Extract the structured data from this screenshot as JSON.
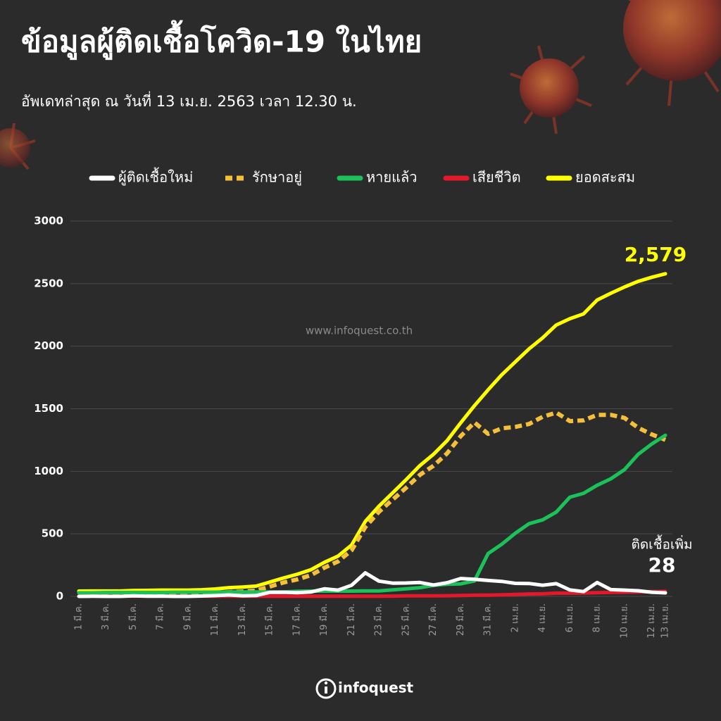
{
  "chart_data": {
    "type": "line",
    "title": "ข้อมูลผู้ติดเชื้อโควิด-19 ในไทย",
    "subtitle": "อัพเดทล่าสุด ณ วันที่  13 เม.ย. 2563 เวลา 12.30 น.",
    "watermark": "www.infoquest.co.th",
    "logo": "infoquest",
    "categories": [
      "1 มี.ค.",
      null,
      "3 มี.ค.",
      null,
      "5 มี.ค.",
      null,
      "7 มี.ค.",
      null,
      "9 มี.ค.",
      null,
      "11 มี.ค.",
      null,
      "13 มี.ค.",
      null,
      "15 มี.ค.",
      null,
      "17 มี.ค.",
      null,
      "19 มี.ค.",
      null,
      "21 มี.ค.",
      null,
      "23 มี.ค.",
      null,
      "25 มี.ค.",
      null,
      "27 มี.ค.",
      null,
      "29 มี.ค.",
      null,
      "31 มี.ค.",
      null,
      "2 เม.ย.",
      null,
      "4 เม.ย.",
      null,
      "6 เม.ย.",
      null,
      "8 เม.ย.",
      null,
      "10 เม.ย.",
      null,
      "12 เม.ย.",
      "13 เม.ย."
    ],
    "series": [
      {
        "name": "ผู้ติดเชื้อใหม่",
        "color": "#ffffff",
        "values": [
          0,
          1,
          0,
          0,
          4,
          1,
          2,
          0,
          0,
          3,
          6,
          11,
          5,
          7,
          32,
          33,
          30,
          35,
          60,
          50,
          89,
          188,
          122,
          106,
          107,
          111,
          91,
          109,
          143,
          136,
          127,
          120,
          104,
          103,
          89,
          102,
          51,
          38,
          111,
          54,
          50,
          45,
          33,
          28
        ]
      },
      {
        "name": "รักษาอยู่",
        "color": "#f5bf3c",
        "dashed": true,
        "values": [
          13,
          14,
          11,
          11,
          15,
          16,
          18,
          16,
          16,
          19,
          24,
          34,
          39,
          46,
          78,
          111,
          135,
          169,
          229,
          279,
          368,
          554,
          676,
          773,
          869,
          971,
          1044,
          1143,
          1281,
          1391,
          1299,
          1343,
          1355,
          1378,
          1435,
          1469,
          1401,
          1407,
          1451,
          1451,
          1427,
          1348,
          1295,
          1251
        ]
      },
      {
        "name": "หายแล้ว",
        "color": "#1cc15a",
        "values": [
          28,
          28,
          31,
          31,
          31,
          31,
          31,
          33,
          33,
          33,
          34,
          35,
          35,
          35,
          35,
          35,
          41,
          42,
          42,
          42,
          42,
          44,
          44,
          52,
          61,
          70,
          88,
          97,
          100,
          124,
          342,
          416,
          505,
          581,
          612,
          674,
          793,
          824,
          888,
          940,
          1013,
          1135,
          1218,
          1288
        ]
      },
      {
        "name": "เสียชีวิต",
        "color": "#e3182b",
        "values": [
          1,
          1,
          1,
          1,
          1,
          1,
          1,
          1,
          1,
          1,
          1,
          1,
          1,
          1,
          1,
          1,
          1,
          1,
          1,
          1,
          1,
          1,
          1,
          2,
          4,
          4,
          4,
          5,
          7,
          9,
          10,
          12,
          15,
          19,
          20,
          26,
          26,
          27,
          30,
          32,
          33,
          35,
          38,
          40
        ]
      },
      {
        "name": "ยอดสะสม",
        "color": "#ffff00",
        "values": [
          42,
          43,
          43,
          43,
          47,
          48,
          50,
          50,
          50,
          53,
          59,
          70,
          75,
          82,
          114,
          147,
          177,
          212,
          272,
          322,
          411,
          599,
          721,
          827,
          934,
          1045,
          1136,
          1245,
          1388,
          1524,
          1651,
          1771,
          1875,
          1978,
          2067,
          2169,
          2220,
          2258,
          2369,
          2423,
          2473,
          2518,
          2551,
          2579
        ]
      }
    ],
    "annotations": [
      {
        "text": "2,579",
        "value": 2579,
        "color": "#ffff00"
      },
      {
        "text": "ติดเชื้อเพิ่ม"
      },
      {
        "text": "28",
        "value": 28,
        "color": "#ffffff"
      }
    ],
    "ylim": [
      0,
      3000
    ],
    "yticks": [
      0,
      500,
      1000,
      1500,
      2000,
      2500,
      3000
    ],
    "grid": true
  }
}
